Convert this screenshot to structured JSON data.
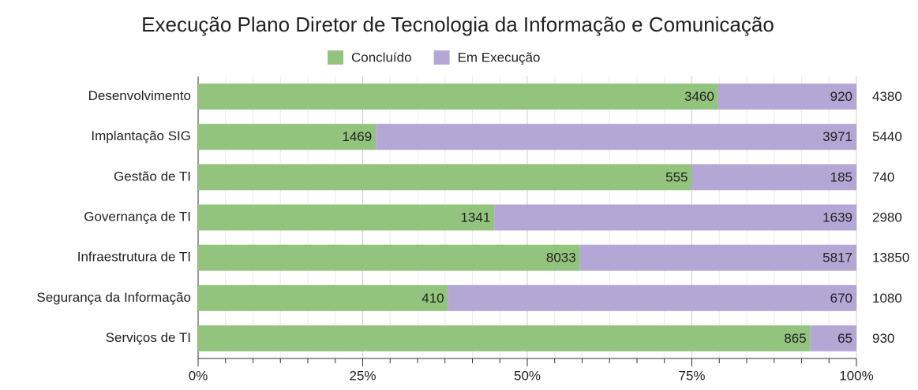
{
  "chart_data": {
    "type": "bar",
    "orientation": "horizontal",
    "stacked": "percent",
    "title": "Execução Plano Diretor de Tecnologia da Informação e Comunicação",
    "categories": [
      "Desenvolvimento",
      "Implantação SIG",
      "Gestão de TI",
      "Governança de TI",
      "Infraestrutura de TI",
      "Segurança da Informação",
      "Serviços de TI"
    ],
    "series": [
      {
        "name": "Concluído",
        "color": "#93c47d",
        "values": [
          3460,
          1469,
          555,
          1341,
          8033,
          410,
          865
        ]
      },
      {
        "name": "Em Execução",
        "color": "#b4a7d6",
        "values": [
          920,
          3971,
          185,
          1639,
          5817,
          670,
          65
        ]
      }
    ],
    "totals": [
      4380,
      5440,
      740,
      2980,
      13850,
      1080,
      930
    ],
    "xlim": [
      0,
      100
    ],
    "xticks": [
      {
        "value": 0,
        "label": "0%"
      },
      {
        "value": 25,
        "label": "25%"
      },
      {
        "value": 50,
        "label": "50%"
      },
      {
        "value": 75,
        "label": "75%"
      },
      {
        "value": 100,
        "label": "100%"
      }
    ],
    "grid": true,
    "legend": "top"
  }
}
